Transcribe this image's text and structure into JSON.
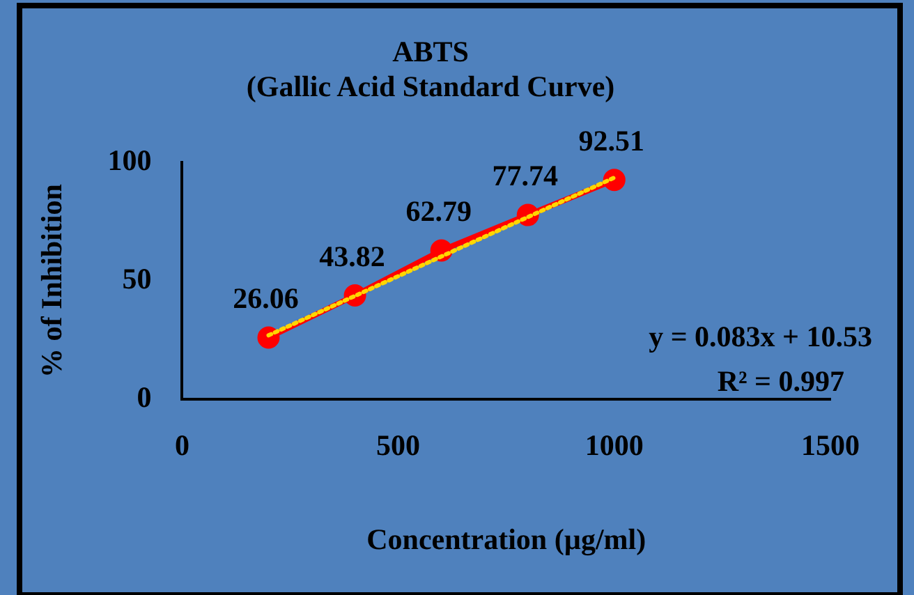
{
  "chart_data": {
    "type": "line",
    "title": "ABTS\n(Gallic Acid Standard Curve)",
    "xlabel": "Concentration (µg/ml)",
    "ylabel": "% of Inhibition",
    "x": [
      200,
      400,
      600,
      800,
      1000
    ],
    "series": [
      {
        "color": "#ff0000",
        "values": [
          26.06,
          43.82,
          62.79,
          77.74,
          92.51
        ],
        "marker": "circle",
        "line_style": "solid",
        "data_labels": true
      },
      {
        "color": "#ffd700",
        "x": [
          200,
          1000
        ],
        "values": [
          27,
          93.5
        ],
        "marker": "none",
        "line_style": "dotted"
      }
    ],
    "annotations": [
      "y = 0.083x + 10.53",
      "R² = 0.997"
    ],
    "xlim": [
      0,
      1500
    ],
    "xticks": [
      0,
      500,
      1000,
      1500
    ],
    "ylim": [
      0,
      100
    ],
    "yticks": [
      0,
      50,
      100
    ],
    "grid": false,
    "legend": false
  }
}
